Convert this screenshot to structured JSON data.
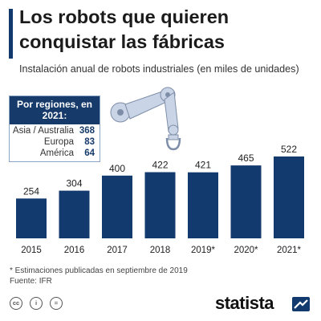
{
  "header": {
    "title": "Los robots que quieren conquistar las fábricas",
    "subtitle": "Instalación anual de robots industriales (en miles de unidades)"
  },
  "regions": {
    "heading": "Por regiones, en 2021:",
    "rows": [
      {
        "name": "Asia / Australia",
        "value": "368"
      },
      {
        "name": "Europa",
        "value": "83"
      },
      {
        "name": "América",
        "value": "64"
      }
    ]
  },
  "chart_data": {
    "type": "bar",
    "title": "Los robots que quieren conquistar las fábricas",
    "subtitle": "Instalación anual de robots industriales (en miles de unidades)",
    "categories": [
      "2015",
      "2016",
      "2017",
      "2018",
      "2019*",
      "2020*",
      "2021*"
    ],
    "values": [
      254,
      304,
      400,
      422,
      421,
      465,
      522
    ],
    "xlabel": "",
    "ylabel": "",
    "ylim": [
      0,
      522
    ],
    "grid": false,
    "bar_color": "#123a6e",
    "data_labels": true
  },
  "footer": {
    "note": "* Estimaciones publicadas en septiembre de 2019",
    "source": "Fuente: IFR",
    "license_icons": [
      "creative-commons-icon",
      "attribution-icon",
      "no-derivatives-icon"
    ],
    "license_labels": [
      "cc",
      "i",
      "="
    ],
    "brand": "statista"
  },
  "colors": {
    "accent": "#123a6e",
    "region_value": "#163a6a",
    "robot_arm": "#c9d4e6"
  }
}
